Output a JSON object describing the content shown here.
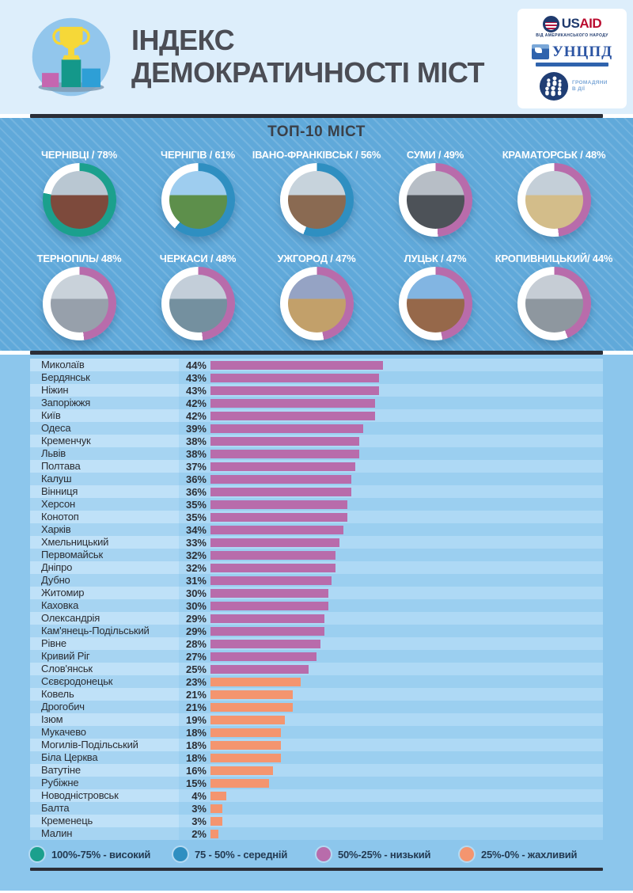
{
  "header": {
    "title_line1": "ІНДЕКС",
    "title_line2": "ДЕМОКРАТИЧНОСТІ МІСТ",
    "logos": {
      "usaid": {
        "us": "US",
        "aid": "AID",
        "tagline": "ВІД АМЕРИКАНСЬКОГО НАРОДУ"
      },
      "uncpd": {
        "name": "УНЦПД"
      },
      "citizens": {
        "name": "ГРОМАДЯНИ В ДІЇ"
      }
    }
  },
  "top10": {
    "title": "ТОП-10 МІСТ",
    "cities": [
      {
        "label": "ЧЕРНІВЦІ / 78%",
        "value": 78,
        "photo": {
          "top": "#b9c7d2",
          "bottom": "#7d4a3c"
        }
      },
      {
        "label": "ЧЕРНІГІВ / 61%",
        "value": 61,
        "photo": {
          "top": "#9ecdef",
          "bottom": "#5d8f4b"
        }
      },
      {
        "label": "ІВАНО-ФРАНКІВСЬК / 56%",
        "value": 56,
        "photo": {
          "top": "#c7d3dc",
          "bottom": "#8a6a52"
        }
      },
      {
        "label": "СУМИ / 49%",
        "value": 49,
        "photo": {
          "top": "#b7bec6",
          "bottom": "#4d5258"
        }
      },
      {
        "label": "КРАМАТОРСЬК / 48%",
        "value": 48,
        "photo": {
          "top": "#c4cfd8",
          "bottom": "#d3bd8a"
        }
      },
      {
        "label": "ТЕРНОПІЛЬ/ 48%",
        "value": 48,
        "photo": {
          "top": "#c9d2da",
          "bottom": "#97a0ab"
        }
      },
      {
        "label": "ЧЕРКАСИ / 48%",
        "value": 48,
        "photo": {
          "top": "#c3ced9",
          "bottom": "#74909f"
        }
      },
      {
        "label": "УЖГОРОД / 47%",
        "value": 47,
        "photo": {
          "top": "#95a3c4",
          "bottom": "#c2a06a"
        }
      },
      {
        "label": "ЛУЦЬК / 47%",
        "value": 47,
        "photo": {
          "top": "#82b5e2",
          "bottom": "#96684a"
        }
      },
      {
        "label": "КРОПИВНИЦЬКИЙ/ 44%",
        "value": 44,
        "photo": {
          "top": "#c6cdd5",
          "bottom": "#8e979f"
        }
      }
    ]
  },
  "chart_data": [
    {
      "type": "donut",
      "title": "ТОП-10 МІСТ",
      "unit": "%",
      "items": [
        {
          "city": "ЧЕРНІВЦІ",
          "value": 78
        },
        {
          "city": "ЧЕРНІГІВ",
          "value": 61
        },
        {
          "city": "ІВАНО-ФРАНКІВСЬК",
          "value": 56
        },
        {
          "city": "СУМИ",
          "value": 49
        },
        {
          "city": "КРАМАТОРСЬК",
          "value": 48
        },
        {
          "city": "ТЕРНОПІЛЬ",
          "value": 48
        },
        {
          "city": "ЧЕРКАСИ",
          "value": 48
        },
        {
          "city": "УЖГОРОД",
          "value": 47
        },
        {
          "city": "ЛУЦЬК",
          "value": 47
        },
        {
          "city": "КРОПИВНИЦЬКИЙ",
          "value": 44
        }
      ]
    },
    {
      "type": "bar",
      "orientation": "horizontal",
      "unit": "%",
      "xlim": [
        0,
        100
      ],
      "categories": [
        "Миколаїв",
        "Бердянськ",
        "Ніжин",
        "Запоріжжя",
        "Київ",
        "Одеса",
        "Кременчук",
        "Львів",
        "Полтава",
        "Калуш",
        "Вінниця",
        "Херсон",
        "Конотоп",
        "Харків",
        "Хмельницький",
        "Первомайськ",
        "Дніпро",
        "Дубно",
        "Житомир",
        "Каховка",
        "Олександрія",
        "Кам'янець-Подільський",
        "Рівне",
        "Кривий Ріг",
        "Слов'янськ",
        "Сєвєродонецьк",
        "Ковель",
        "Дрогобич",
        "Ізюм",
        "Мукачево",
        "Могилів-Подільський",
        "Біла Церква",
        "Ватутіне",
        "Рубіжне",
        "Новодністровськ",
        "Балта",
        "Кременець",
        "Малин"
      ],
      "values": [
        44,
        43,
        43,
        42,
        42,
        39,
        38,
        38,
        37,
        36,
        36,
        35,
        35,
        34,
        33,
        32,
        32,
        31,
        30,
        30,
        29,
        29,
        28,
        27,
        25,
        23,
        21,
        21,
        19,
        18,
        18,
        18,
        16,
        15,
        4,
        3,
        3,
        2
      ],
      "legend_position": "bottom"
    }
  ],
  "legend": {
    "items": [
      {
        "label": "100%-75% - високий",
        "color": "#1ba08d"
      },
      {
        "label": "75 - 50% - середній",
        "color": "#2f8fc1"
      },
      {
        "label": "50%-25% - низький",
        "color": "#b86cab"
      },
      {
        "label": "25%-0% - жахливий",
        "color": "#f4956f"
      }
    ]
  },
  "colors": {
    "high": "#1ba08d",
    "mid": "#2f8fc1",
    "low": "#b86cab",
    "bad": "#f4956f"
  }
}
